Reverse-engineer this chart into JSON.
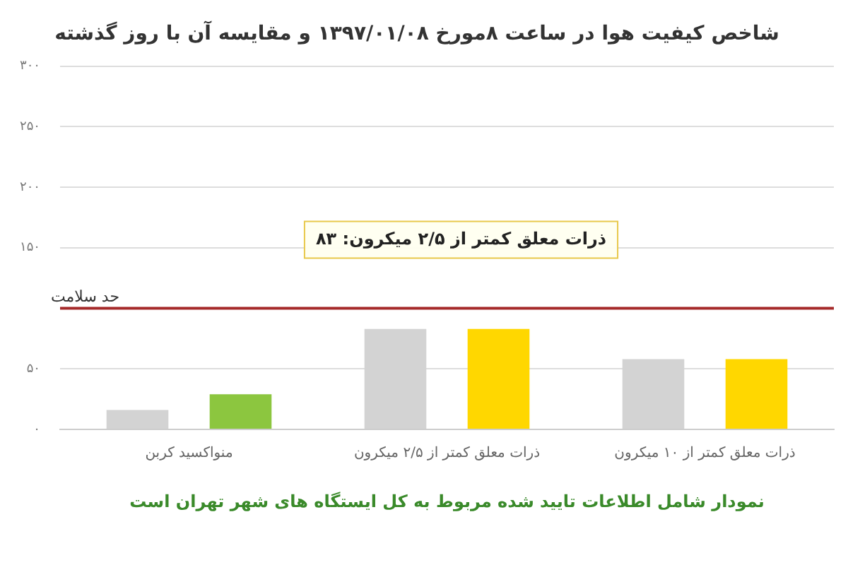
{
  "chart_data": {
    "type": "bar",
    "title": "شاخص کیفیت هوا در ساعت ۸مورخ ۱۳۹۷/۰۱/۰۸ و مقایسه آن با روز گذشته",
    "categories": [
      "منواکسید کربن",
      "ذرات معلق کمتر از ۲/۵ میکرون",
      "ذرات معلق کمتر از ۱۰ میکرون"
    ],
    "series": [
      {
        "color": "#d3d3d3",
        "values": [
          16,
          83,
          58
        ]
      },
      {
        "colors": [
          "#8cc63f",
          "#ffd700",
          "#ffd700"
        ],
        "values": [
          29,
          83,
          58
        ]
      }
    ],
    "ylim": [
      0,
      300
    ],
    "yticks": [
      {
        "value": 0,
        "label": "۰"
      },
      {
        "value": 50,
        "label": "۵۰"
      },
      {
        "value": 100,
        "label": null
      },
      {
        "value": 150,
        "label": "۱۵۰"
      },
      {
        "value": 200,
        "label": "۲۰۰"
      },
      {
        "value": 250,
        "label": "۲۵۰"
      },
      {
        "value": 300,
        "label": "۳۰۰"
      }
    ],
    "grid": "y",
    "legend": false,
    "ref_lines": [
      {
        "axis": "y",
        "value": 100,
        "label": "حد سلامت",
        "color": "#a52a2a"
      }
    ],
    "annotations": [
      "ذرات معلق کمتر از ۲/۵ میکرون: ۸۳",
      "نمودار شامل اطلاعات تایید شده مربوط به کل ایستگاه های شهر تهران است"
    ]
  }
}
